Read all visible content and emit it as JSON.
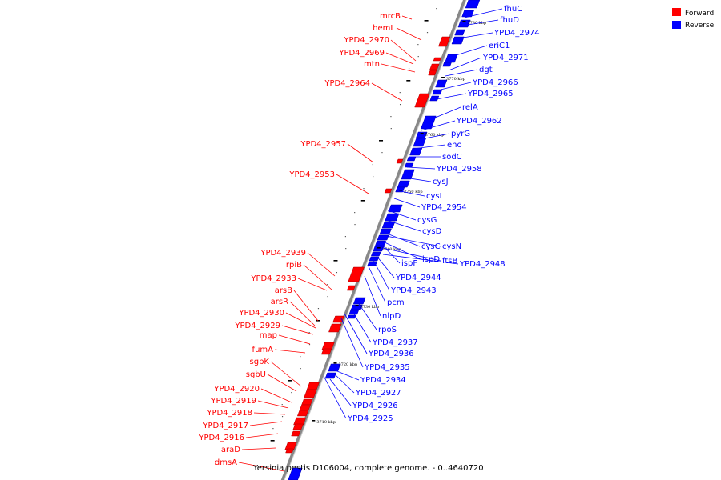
{
  "caption": "Yersinia pestis D106004, complete genome. - 0..4640720",
  "legend": {
    "forward_label": "Forward",
    "reverse_label": "Reverse",
    "forward_color": "#ff0000",
    "reverse_color": "#0000ff"
  },
  "backbone_color": "#888888",
  "ticks": [
    "3780 kbp",
    "3770 kbp",
    "3760 kbp",
    "3750 kbp",
    "3740 kbp",
    "3730 kbp",
    "3720 kbp",
    "3710 kbp"
  ],
  "forward_genes": [
    "mrcB",
    "hemL",
    "YPD4_2970",
    "YPD4_2969",
    "mtn",
    "YPD4_2964",
    "YPD4_2957",
    "YPD4_2953",
    "YPD4_2939",
    "rpiB",
    "YPD4_2933",
    "arsB",
    "arsR",
    "YPD4_2930",
    "YPD4_2929",
    "map",
    "fumA",
    "sgbK",
    "sgbU",
    "YPD4_2920",
    "YPD4_2919",
    "YPD4_2918",
    "YPD4_2917",
    "YPD4_2916",
    "araD",
    "dmsA"
  ],
  "reverse_genes": [
    "fhuC",
    "fhuD",
    "YPD4_2974",
    "eriC1",
    "YPD4_2971",
    "dgt",
    "YPD4_2966",
    "YPD4_2965",
    "relA",
    "YPD4_2962",
    "pyrG",
    "eno",
    "sodC",
    "YPD4_2958",
    "cysJ",
    "cysI",
    "YPD4_2954",
    "cysG",
    "cysD",
    "cysC",
    "cysN",
    "ispD",
    "ftsB",
    "ispF",
    "YPD4_2948",
    "YPD4_2944",
    "YPD4_2943",
    "pcm",
    "nlpD",
    "rpoS",
    "YPD4_2937",
    "YPD4_2936",
    "YPD4_2935",
    "YPD4_2934",
    "YPD4_2927",
    "YPD4_2926",
    "YPD4_2925"
  ]
}
